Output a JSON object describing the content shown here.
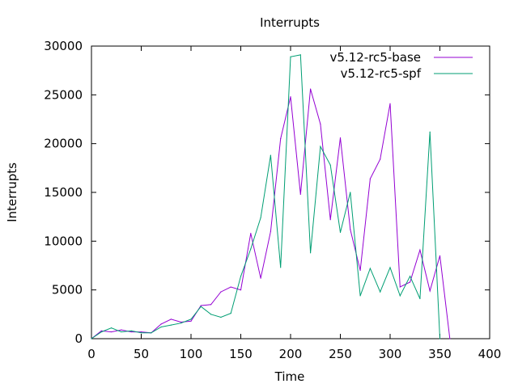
{
  "chart_data": {
    "type": "line",
    "title": "Interrupts",
    "xlabel": "Time",
    "ylabel": "Interrupts",
    "xlim": [
      0,
      400
    ],
    "ylim": [
      0,
      30000
    ],
    "xticks": [
      0,
      50,
      100,
      150,
      200,
      250,
      300,
      350,
      400
    ],
    "yticks": [
      0,
      5000,
      10000,
      15000,
      20000,
      25000,
      30000
    ],
    "grid": false,
    "legend_position": "top-right",
    "series": [
      {
        "name": "v5.12-rc5-base",
        "color": "#9400d3",
        "x": [
          0,
          10,
          20,
          30,
          40,
          50,
          60,
          70,
          80,
          90,
          100,
          110,
          120,
          130,
          140,
          150,
          160,
          170,
          180,
          190,
          200,
          210,
          220,
          230,
          240,
          250,
          260,
          270,
          280,
          290,
          300,
          310,
          320,
          330,
          340,
          350,
          360
        ],
        "y": [
          0,
          800,
          700,
          900,
          700,
          700,
          600,
          1500,
          2000,
          1700,
          1800,
          3400,
          3500,
          4800,
          5300,
          5000,
          10800,
          6200,
          11000,
          20500,
          24800,
          14800,
          25600,
          22000,
          12200,
          20600,
          11200,
          7000,
          16400,
          18400,
          24100,
          5300,
          5800,
          9100,
          4900,
          8500,
          0
        ]
      },
      {
        "name": "v5.12-rc5-spf",
        "color": "#009e73",
        "x": [
          0,
          10,
          20,
          30,
          40,
          50,
          60,
          70,
          80,
          90,
          100,
          110,
          120,
          130,
          140,
          150,
          160,
          170,
          180,
          190,
          200,
          210,
          220,
          230,
          240,
          250,
          260,
          270,
          280,
          290,
          300,
          310,
          320,
          330,
          340,
          350
        ],
        "y": [
          0,
          700,
          1100,
          700,
          800,
          600,
          600,
          1200,
          1400,
          1600,
          2000,
          3300,
          2500,
          2200,
          2600,
          6400,
          9200,
          12400,
          18800,
          7300,
          28900,
          29100,
          8800,
          19700,
          17800,
          10900,
          15000,
          4400,
          7200,
          4800,
          7300,
          4400,
          6400,
          4100,
          21200,
          0
        ]
      }
    ]
  }
}
